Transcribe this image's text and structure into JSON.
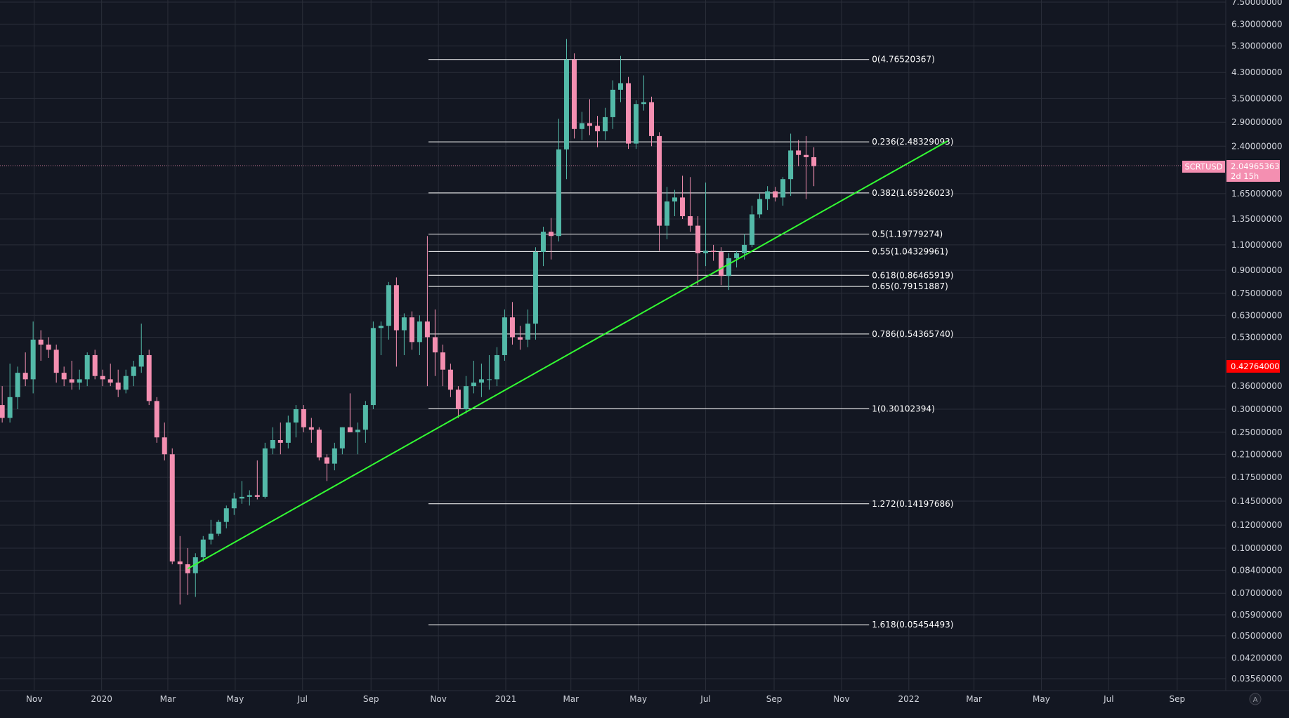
{
  "chart_data": {
    "type": "candlestick",
    "symbol": "SCRTUSD",
    "scale": "log",
    "ylim": [
      0.0335,
      7.5
    ],
    "y_ticks": [
      "7.50000000",
      "6.30000000",
      "5.30000000",
      "4.30000000",
      "3.50000000",
      "2.90000000",
      "2.40000000",
      "1.65000000",
      "1.35000000",
      "1.10000000",
      "0.90000000",
      "0.75000000",
      "0.63000000",
      "0.53000000",
      "0.36000000",
      "0.30000000",
      "0.25000000",
      "0.21000000",
      "0.17500000",
      "0.14500000",
      "0.12000000",
      "0.10000000",
      "0.08400000",
      "0.07000000",
      "0.05900000",
      "0.05000000",
      "0.04200000",
      "0.03560000"
    ],
    "x_ticks": [
      "Nov",
      "2020",
      "Mar",
      "May",
      "Jul",
      "Sep",
      "Nov",
      "2021",
      "Mar",
      "May",
      "Jul",
      "Sep",
      "Nov",
      "2022",
      "Mar",
      "May",
      "Jul",
      "Sep"
    ],
    "x_start": "2019-10-01",
    "x_end": "2022-10-15",
    "last_price": "2.04965363",
    "countdown": "2d 15h",
    "marked_price": "0.42764000",
    "fib_retracement": [
      {
        "label": "0(4.76520367)",
        "value": 4.76520367
      },
      {
        "label": "0.236(2.48329093)",
        "value": 2.48329093
      },
      {
        "label": "0.382(1.65926023)",
        "value": 1.65926023
      },
      {
        "label": "0.5(1.19779274)",
        "value": 1.19779274
      },
      {
        "label": "0.55(1.04329961)",
        "value": 1.04329961
      },
      {
        "label": "0.618(0.86465919)",
        "value": 0.86465919
      },
      {
        "label": "0.65(0.79151887)",
        "value": 0.79151887
      },
      {
        "label": "0.786(0.54365740)",
        "value": 0.5436574
      },
      {
        "label": "1(0.30102394)",
        "value": 0.30102394
      },
      {
        "label": "1.272(0.14197686)",
        "value": 0.14197686
      },
      {
        "label": "1.618(0.05454493)",
        "value": 0.05454493
      }
    ],
    "fib_range": [
      "2020-10-23",
      "2021-11-26"
    ],
    "trendline": [
      {
        "date": "2020-03-19",
        "price": 0.085
      },
      {
        "date": "2022-02-05",
        "price": 2.5
      }
    ],
    "candles": [
      {
        "d": "2019-09-30",
        "o": 0.31,
        "h": 0.36,
        "l": 0.27,
        "c": 0.28
      },
      {
        "d": "2019-10-07",
        "o": 0.28,
        "h": 0.43,
        "l": 0.27,
        "c": 0.33
      },
      {
        "d": "2019-10-14",
        "o": 0.33,
        "h": 0.42,
        "l": 0.3,
        "c": 0.4
      },
      {
        "d": "2019-10-21",
        "o": 0.4,
        "h": 0.47,
        "l": 0.36,
        "c": 0.38
      },
      {
        "d": "2019-10-28",
        "o": 0.38,
        "h": 0.6,
        "l": 0.34,
        "c": 0.52
      },
      {
        "d": "2019-11-04",
        "o": 0.52,
        "h": 0.56,
        "l": 0.44,
        "c": 0.5
      },
      {
        "d": "2019-11-11",
        "o": 0.5,
        "h": 0.53,
        "l": 0.45,
        "c": 0.48
      },
      {
        "d": "2019-11-18",
        "o": 0.48,
        "h": 0.5,
        "l": 0.37,
        "c": 0.4
      },
      {
        "d": "2019-11-25",
        "o": 0.4,
        "h": 0.42,
        "l": 0.36,
        "c": 0.38
      },
      {
        "d": "2019-12-02",
        "o": 0.38,
        "h": 0.44,
        "l": 0.35,
        "c": 0.37
      },
      {
        "d": "2019-12-09",
        "o": 0.37,
        "h": 0.41,
        "l": 0.35,
        "c": 0.38
      },
      {
        "d": "2019-12-16",
        "o": 0.38,
        "h": 0.47,
        "l": 0.36,
        "c": 0.46
      },
      {
        "d": "2019-12-23",
        "o": 0.46,
        "h": 0.48,
        "l": 0.38,
        "c": 0.39
      },
      {
        "d": "2019-12-30",
        "o": 0.39,
        "h": 0.41,
        "l": 0.36,
        "c": 0.38
      },
      {
        "d": "2020-01-06",
        "o": 0.38,
        "h": 0.43,
        "l": 0.36,
        "c": 0.37
      },
      {
        "d": "2020-01-13",
        "o": 0.37,
        "h": 0.41,
        "l": 0.33,
        "c": 0.35
      },
      {
        "d": "2020-01-20",
        "o": 0.35,
        "h": 0.41,
        "l": 0.34,
        "c": 0.39
      },
      {
        "d": "2020-01-27",
        "o": 0.39,
        "h": 0.44,
        "l": 0.36,
        "c": 0.42
      },
      {
        "d": "2020-02-03",
        "o": 0.42,
        "h": 0.59,
        "l": 0.4,
        "c": 0.46
      },
      {
        "d": "2020-02-10",
        "o": 0.46,
        "h": 0.48,
        "l": 0.31,
        "c": 0.32
      },
      {
        "d": "2020-02-17",
        "o": 0.32,
        "h": 0.33,
        "l": 0.23,
        "c": 0.24
      },
      {
        "d": "2020-02-24",
        "o": 0.24,
        "h": 0.27,
        "l": 0.2,
        "c": 0.21
      },
      {
        "d": "2020-03-02",
        "o": 0.21,
        "h": 0.22,
        "l": 0.088,
        "c": 0.09
      },
      {
        "d": "2020-03-09",
        "o": 0.09,
        "h": 0.11,
        "l": 0.064,
        "c": 0.088
      },
      {
        "d": "2020-03-16",
        "o": 0.088,
        "h": 0.1,
        "l": 0.069,
        "c": 0.082
      },
      {
        "d": "2020-03-23",
        "o": 0.082,
        "h": 0.096,
        "l": 0.068,
        "c": 0.093
      },
      {
        "d": "2020-03-30",
        "o": 0.093,
        "h": 0.11,
        "l": 0.09,
        "c": 0.107
      },
      {
        "d": "2020-04-06",
        "o": 0.107,
        "h": 0.125,
        "l": 0.103,
        "c": 0.112
      },
      {
        "d": "2020-04-13",
        "o": 0.112,
        "h": 0.125,
        "l": 0.11,
        "c": 0.123
      },
      {
        "d": "2020-04-20",
        "o": 0.123,
        "h": 0.14,
        "l": 0.117,
        "c": 0.137
      },
      {
        "d": "2020-04-27",
        "o": 0.137,
        "h": 0.155,
        "l": 0.13,
        "c": 0.148
      },
      {
        "d": "2020-05-04",
        "o": 0.148,
        "h": 0.17,
        "l": 0.142,
        "c": 0.15
      },
      {
        "d": "2020-05-11",
        "o": 0.15,
        "h": 0.158,
        "l": 0.14,
        "c": 0.152
      },
      {
        "d": "2020-05-18",
        "o": 0.152,
        "h": 0.2,
        "l": 0.147,
        "c": 0.15
      },
      {
        "d": "2020-05-25",
        "o": 0.15,
        "h": 0.23,
        "l": 0.148,
        "c": 0.22
      },
      {
        "d": "2020-06-01",
        "o": 0.22,
        "h": 0.26,
        "l": 0.21,
        "c": 0.235
      },
      {
        "d": "2020-06-08",
        "o": 0.235,
        "h": 0.27,
        "l": 0.21,
        "c": 0.23
      },
      {
        "d": "2020-06-15",
        "o": 0.23,
        "h": 0.285,
        "l": 0.22,
        "c": 0.27
      },
      {
        "d": "2020-06-22",
        "o": 0.27,
        "h": 0.31,
        "l": 0.24,
        "c": 0.3
      },
      {
        "d": "2020-06-29",
        "o": 0.3,
        "h": 0.31,
        "l": 0.25,
        "c": 0.26
      },
      {
        "d": "2020-07-06",
        "o": 0.26,
        "h": 0.28,
        "l": 0.23,
        "c": 0.255
      },
      {
        "d": "2020-07-13",
        "o": 0.255,
        "h": 0.26,
        "l": 0.2,
        "c": 0.205
      },
      {
        "d": "2020-07-20",
        "o": 0.205,
        "h": 0.21,
        "l": 0.17,
        "c": 0.195
      },
      {
        "d": "2020-07-27",
        "o": 0.195,
        "h": 0.23,
        "l": 0.185,
        "c": 0.22
      },
      {
        "d": "2020-08-03",
        "o": 0.22,
        "h": 0.26,
        "l": 0.21,
        "c": 0.26
      },
      {
        "d": "2020-08-10",
        "o": 0.26,
        "h": 0.34,
        "l": 0.25,
        "c": 0.25
      },
      {
        "d": "2020-08-17",
        "o": 0.25,
        "h": 0.27,
        "l": 0.21,
        "c": 0.255
      },
      {
        "d": "2020-08-24",
        "o": 0.255,
        "h": 0.32,
        "l": 0.23,
        "c": 0.31
      },
      {
        "d": "2020-08-31",
        "o": 0.31,
        "h": 0.6,
        "l": 0.3,
        "c": 0.57
      },
      {
        "d": "2020-09-07",
        "o": 0.57,
        "h": 0.6,
        "l": 0.46,
        "c": 0.58
      },
      {
        "d": "2020-09-14",
        "o": 0.58,
        "h": 0.82,
        "l": 0.52,
        "c": 0.8
      },
      {
        "d": "2020-09-21",
        "o": 0.8,
        "h": 0.85,
        "l": 0.42,
        "c": 0.56
      },
      {
        "d": "2020-09-28",
        "o": 0.56,
        "h": 0.64,
        "l": 0.46,
        "c": 0.62
      },
      {
        "d": "2020-10-05",
        "o": 0.62,
        "h": 0.65,
        "l": 0.48,
        "c": 0.51
      },
      {
        "d": "2020-10-12",
        "o": 0.51,
        "h": 0.63,
        "l": 0.46,
        "c": 0.6
      },
      {
        "d": "2020-10-19",
        "o": 0.6,
        "h": 1.18,
        "l": 0.36,
        "c": 0.53
      },
      {
        "d": "2020-10-26",
        "o": 0.53,
        "h": 0.66,
        "l": 0.39,
        "c": 0.47
      },
      {
        "d": "2020-11-02",
        "o": 0.47,
        "h": 0.5,
        "l": 0.36,
        "c": 0.41
      },
      {
        "d": "2020-11-09",
        "o": 0.41,
        "h": 0.43,
        "l": 0.33,
        "c": 0.35
      },
      {
        "d": "2020-11-16",
        "o": 0.35,
        "h": 0.36,
        "l": 0.28,
        "c": 0.3
      },
      {
        "d": "2020-11-23",
        "o": 0.3,
        "h": 0.39,
        "l": 0.29,
        "c": 0.36
      },
      {
        "d": "2020-11-30",
        "o": 0.36,
        "h": 0.44,
        "l": 0.34,
        "c": 0.37
      },
      {
        "d": "2020-12-07",
        "o": 0.37,
        "h": 0.43,
        "l": 0.33,
        "c": 0.38
      },
      {
        "d": "2020-12-14",
        "o": 0.38,
        "h": 0.46,
        "l": 0.35,
        "c": 0.38
      },
      {
        "d": "2020-12-21",
        "o": 0.38,
        "h": 0.49,
        "l": 0.36,
        "c": 0.46
      },
      {
        "d": "2020-12-28",
        "o": 0.46,
        "h": 0.66,
        "l": 0.44,
        "c": 0.62
      },
      {
        "d": "2021-01-04",
        "o": 0.62,
        "h": 0.7,
        "l": 0.5,
        "c": 0.53
      },
      {
        "d": "2021-01-11",
        "o": 0.53,
        "h": 0.58,
        "l": 0.48,
        "c": 0.52
      },
      {
        "d": "2021-01-18",
        "o": 0.52,
        "h": 0.66,
        "l": 0.49,
        "c": 0.59
      },
      {
        "d": "2021-01-25",
        "o": 0.59,
        "h": 1.08,
        "l": 0.52,
        "c": 1.04
      },
      {
        "d": "2021-02-01",
        "o": 1.04,
        "h": 1.27,
        "l": 0.93,
        "c": 1.22
      },
      {
        "d": "2021-02-08",
        "o": 1.22,
        "h": 1.36,
        "l": 0.98,
        "c": 1.18
      },
      {
        "d": "2021-02-15",
        "o": 1.18,
        "h": 2.98,
        "l": 1.13,
        "c": 2.34
      },
      {
        "d": "2021-02-22",
        "o": 2.34,
        "h": 5.6,
        "l": 1.85,
        "c": 4.76
      },
      {
        "d": "2021-03-01",
        "o": 4.76,
        "h": 5.0,
        "l": 2.55,
        "c": 2.75
      },
      {
        "d": "2021-03-08",
        "o": 2.75,
        "h": 3.15,
        "l": 2.52,
        "c": 2.88
      },
      {
        "d": "2021-03-15",
        "o": 2.88,
        "h": 3.48,
        "l": 2.62,
        "c": 2.82
      },
      {
        "d": "2021-03-22",
        "o": 2.82,
        "h": 3.05,
        "l": 2.38,
        "c": 2.7
      },
      {
        "d": "2021-03-29",
        "o": 2.7,
        "h": 3.25,
        "l": 2.52,
        "c": 3.02
      },
      {
        "d": "2021-04-05",
        "o": 3.02,
        "h": 4.04,
        "l": 2.75,
        "c": 3.75
      },
      {
        "d": "2021-04-12",
        "o": 3.75,
        "h": 4.9,
        "l": 3.4,
        "c": 3.95
      },
      {
        "d": "2021-04-19",
        "o": 3.95,
        "h": 4.15,
        "l": 2.35,
        "c": 2.45
      },
      {
        "d": "2021-04-26",
        "o": 2.45,
        "h": 3.45,
        "l": 2.35,
        "c": 3.35
      },
      {
        "d": "2021-05-03",
        "o": 3.35,
        "h": 4.2,
        "l": 3.18,
        "c": 3.4
      },
      {
        "d": "2021-05-10",
        "o": 3.4,
        "h": 3.55,
        "l": 2.4,
        "c": 2.6
      },
      {
        "d": "2021-05-17",
        "o": 2.6,
        "h": 2.68,
        "l": 1.05,
        "c": 1.28
      },
      {
        "d": "2021-05-24",
        "o": 1.28,
        "h": 1.74,
        "l": 1.15,
        "c": 1.55
      },
      {
        "d": "2021-05-31",
        "o": 1.55,
        "h": 1.7,
        "l": 1.38,
        "c": 1.6
      },
      {
        "d": "2021-06-07",
        "o": 1.6,
        "h": 1.9,
        "l": 1.35,
        "c": 1.38
      },
      {
        "d": "2021-06-14",
        "o": 1.38,
        "h": 1.88,
        "l": 1.22,
        "c": 1.28
      },
      {
        "d": "2021-06-21",
        "o": 1.28,
        "h": 1.38,
        "l": 0.8,
        "c": 1.03
      },
      {
        "d": "2021-06-28",
        "o": 1.03,
        "h": 1.8,
        "l": 0.93,
        "c": 1.05
      },
      {
        "d": "2021-07-05",
        "o": 1.05,
        "h": 1.1,
        "l": 0.97,
        "c": 1.04
      },
      {
        "d": "2021-07-12",
        "o": 1.04,
        "h": 1.08,
        "l": 0.8,
        "c": 0.86
      },
      {
        "d": "2021-07-19",
        "o": 0.86,
        "h": 1.03,
        "l": 0.77,
        "c": 0.99
      },
      {
        "d": "2021-07-26",
        "o": 0.99,
        "h": 1.05,
        "l": 0.92,
        "c": 1.03
      },
      {
        "d": "2021-08-02",
        "o": 1.03,
        "h": 1.2,
        "l": 0.98,
        "c": 1.1
      },
      {
        "d": "2021-08-09",
        "o": 1.1,
        "h": 1.5,
        "l": 1.08,
        "c": 1.4
      },
      {
        "d": "2021-08-16",
        "o": 1.4,
        "h": 1.65,
        "l": 1.36,
        "c": 1.58
      },
      {
        "d": "2021-08-23",
        "o": 1.58,
        "h": 1.75,
        "l": 1.45,
        "c": 1.68
      },
      {
        "d": "2021-08-30",
        "o": 1.68,
        "h": 1.74,
        "l": 1.55,
        "c": 1.6
      },
      {
        "d": "2021-09-06",
        "o": 1.6,
        "h": 1.88,
        "l": 1.5,
        "c": 1.85
      },
      {
        "d": "2021-09-13",
        "o": 1.85,
        "h": 2.65,
        "l": 1.62,
        "c": 2.32
      },
      {
        "d": "2021-09-20",
        "o": 2.32,
        "h": 2.52,
        "l": 2.05,
        "c": 2.24
      },
      {
        "d": "2021-09-27",
        "o": 2.24,
        "h": 2.6,
        "l": 1.58,
        "c": 2.2
      },
      {
        "d": "2021-10-04",
        "o": 2.2,
        "h": 2.38,
        "l": 1.75,
        "c": 2.05
      }
    ]
  },
  "colors": {
    "background": "#131722",
    "grid": "#2a2e39",
    "up": "#53b9a8",
    "down": "#f48fb1",
    "trendline": "#33ff33",
    "fib": "#ffffff",
    "badge_last": "#f48fb1",
    "badge_marked": "#ff0000",
    "axis_text": "#d1d4dc"
  },
  "corner_icon": "auto-scale-icon",
  "corner_label": "A"
}
